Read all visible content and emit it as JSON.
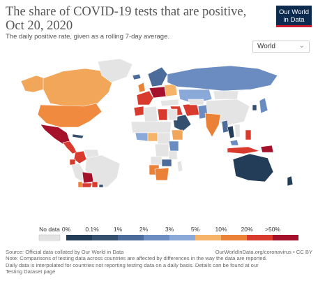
{
  "header": {
    "title": "The share of COVID-19 tests that are positive, Oct 20, 2020",
    "subtitle": "The daily positive rate, given as a rolling 7-day average.",
    "logo_line1": "Our World",
    "logo_line2": "in Data"
  },
  "region_select": {
    "selected": "World"
  },
  "legend": {
    "nodata_label": "No data",
    "bins": [
      {
        "label": "0%",
        "color": "#233d59"
      },
      {
        "label": "0.1%",
        "color": "#35506f"
      },
      {
        "label": "1%",
        "color": "#4b6c9a"
      },
      {
        "label": "2%",
        "color": "#6a8cc0"
      },
      {
        "label": "3%",
        "color": "#8ba9d8"
      },
      {
        "label": "5%",
        "color": "#f6b36a"
      },
      {
        "label": "10%",
        "color": "#ea8137"
      },
      {
        "label": "20%",
        "color": "#d93a2e"
      },
      {
        "label": ">50%",
        "color": "#a5102a"
      }
    ]
  },
  "footer": {
    "source": "Source: Official data collated by Our World in Data",
    "url": "OurWorldInData.org/coronavirus • CC BY",
    "note1": "Note: Comparisons of testing data across countries are affected by differences in the way the data are reported.",
    "note2": "Daily data is interpolated for countries not reporting testing data on a daily basis. Details can be found at our",
    "note3": "Testing Dataset page"
  },
  "colors": {
    "no_data": "#e4e4e4",
    "border": "#ffffff",
    "brand": "#0c2b4e",
    "brand_accent": "#cc1a2e"
  },
  "regions": [
    {
      "name": "Canada",
      "color": "#f2a65a"
    },
    {
      "name": "Alaska",
      "color": "#f2a65a"
    },
    {
      "name": "Greenland",
      "color": "#e4e4e4"
    },
    {
      "name": "United States",
      "color": "#f08a3e"
    },
    {
      "name": "Mexico",
      "color": "#a5102a"
    },
    {
      "name": "Central America",
      "color": "#d93a2e"
    },
    {
      "name": "Cuba",
      "color": "#35506f"
    },
    {
      "name": "Colombia",
      "color": "#d93a2e"
    },
    {
      "name": "Venezuela",
      "color": "#e4e4e4"
    },
    {
      "name": "Ecuador",
      "color": "#d93a2e"
    },
    {
      "name": "Peru",
      "color": "#e4e4e4"
    },
    {
      "name": "Brazil",
      "color": "#e4e4e4"
    },
    {
      "name": "Bolivia",
      "color": "#a5102a"
    },
    {
      "name": "Paraguay",
      "color": "#d93a2e"
    },
    {
      "name": "Chile",
      "color": "#ea8137"
    },
    {
      "name": "Argentina",
      "color": "#d93a2e"
    },
    {
      "name": "Uruguay",
      "color": "#35506f"
    },
    {
      "name": "Iceland",
      "color": "#4b6c9a"
    },
    {
      "name": "United Kingdom",
      "color": "#ea8137"
    },
    {
      "name": "Scandinavia",
      "color": "#4b6c9a"
    },
    {
      "name": "Western Europe",
      "color": "#d93a2e"
    },
    {
      "name": "Central Europe",
      "color": "#a5102a"
    },
    {
      "name": "Eastern Europe",
      "color": "#f6b36a"
    },
    {
      "name": "Russia",
      "color": "#6a8cc0"
    },
    {
      "name": "Kazakhstan",
      "color": "#8ba9d8"
    },
    {
      "name": "Mongolia",
      "color": "#e4e4e4"
    },
    {
      "name": "China",
      "color": "#e4e4e4"
    },
    {
      "name": "Turkey",
      "color": "#e4e4e4"
    },
    {
      "name": "Middle East",
      "color": "#d93a2e"
    },
    {
      "name": "Saudi Arabia",
      "color": "#35506f"
    },
    {
      "name": "Iran",
      "color": "#d93a2e"
    },
    {
      "name": "Central Asia",
      "color": "#e4e4e4"
    },
    {
      "name": "Pakistan",
      "color": "#6a8cc0"
    },
    {
      "name": "India",
      "color": "#ea8137"
    },
    {
      "name": "Myanmar",
      "color": "#4b6c9a"
    },
    {
      "name": "Thailand",
      "color": "#233d59"
    },
    {
      "name": "Vietnam",
      "color": "#e4e4e4"
    },
    {
      "name": "Malaysia",
      "color": "#6a8cc0"
    },
    {
      "name": "Indonesia",
      "color": "#d93a2e"
    },
    {
      "name": "Philippines",
      "color": "#d93a2e"
    },
    {
      "name": "Papua New Guinea",
      "color": "#a5102a"
    },
    {
      "name": "Japan",
      "color": "#6a8cc0"
    },
    {
      "name": "Korea",
      "color": "#35506f"
    },
    {
      "name": "Australia",
      "color": "#233d59"
    },
    {
      "name": "New Zealand",
      "color": "#233d59"
    },
    {
      "name": "Morocco",
      "color": "#d93a2e"
    },
    {
      "name": "Algeria",
      "color": "#e4e4e4"
    },
    {
      "name": "Libya",
      "color": "#d93a2e"
    },
    {
      "name": "Egypt",
      "color": "#e4e4e4"
    },
    {
      "name": "Sahel",
      "color": "#e4e4e4"
    },
    {
      "name": "West Africa",
      "color": "#8ba9d8"
    },
    {
      "name": "Nigeria",
      "color": "#f6b36a"
    },
    {
      "name": "Central Africa",
      "color": "#e4e4e4"
    },
    {
      "name": "Ethiopia",
      "color": "#f2a65a"
    },
    {
      "name": "East Africa",
      "color": "#6a8cc0"
    },
    {
      "name": "Congo",
      "color": "#e4e4e4"
    },
    {
      "name": "Tanzania",
      "color": "#e4e4e4"
    },
    {
      "name": "Angola",
      "color": "#e4e4e4"
    },
    {
      "name": "Zambia",
      "color": "#4b6c9a"
    },
    {
      "name": "Namibia",
      "color": "#ea8137"
    },
    {
      "name": "South Africa",
      "color": "#ea8137"
    },
    {
      "name": "Madagascar",
      "color": "#e4e4e4"
    }
  ]
}
